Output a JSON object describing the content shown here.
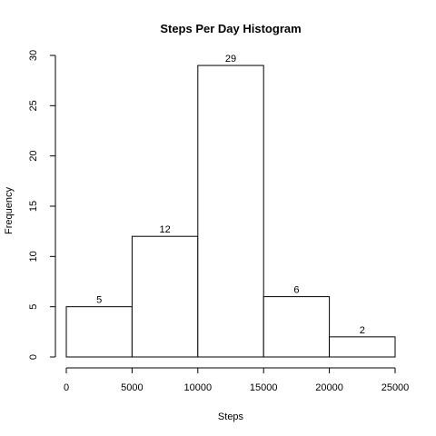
{
  "chart_data": {
    "type": "bar",
    "title": "Steps Per Day Histogram",
    "xlabel": "Steps",
    "ylabel": "Frequency",
    "bins": [
      {
        "start": 0,
        "end": 5000,
        "count": 5
      },
      {
        "start": 5000,
        "end": 10000,
        "count": 12
      },
      {
        "start": 10000,
        "end": 15000,
        "count": 29
      },
      {
        "start": 15000,
        "end": 20000,
        "count": 6
      },
      {
        "start": 20000,
        "end": 25000,
        "count": 2
      }
    ],
    "xlim": [
      0,
      25000
    ],
    "ylim": [
      0,
      30
    ],
    "x_ticks": [
      0,
      5000,
      10000,
      15000,
      20000,
      25000
    ],
    "y_ticks": [
      0,
      5,
      10,
      15,
      20,
      25,
      30
    ],
    "grid": false,
    "bar_fill": "#ffffff",
    "bar_stroke": "#000000"
  }
}
